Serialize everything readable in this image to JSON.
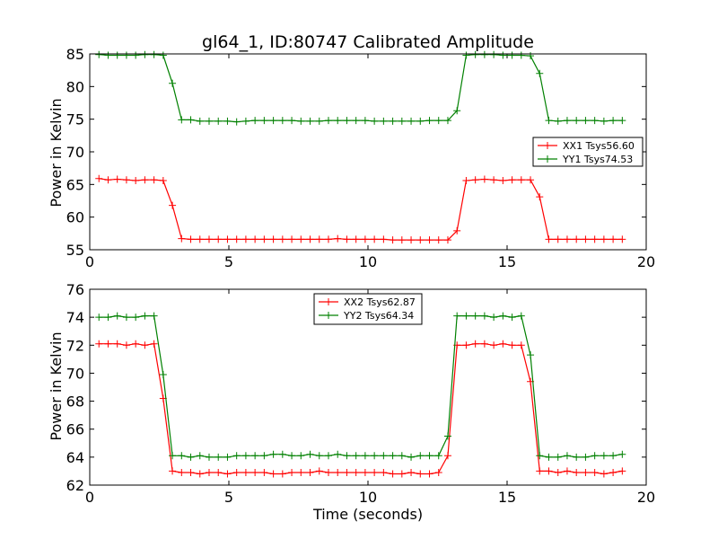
{
  "chart_data": [
    {
      "type": "line",
      "title": "gl64_1, ID:80747 Calibrated Amplitude",
      "xlabel": "",
      "ylabel": "Power in Kelvin",
      "xlim": [
        0,
        20
      ],
      "ylim": [
        55,
        85
      ],
      "xticks": [
        "0",
        "5",
        "10",
        "15",
        "20"
      ],
      "yticks": [
        "55",
        "60",
        "65",
        "70",
        "75",
        "80",
        "85"
      ],
      "legend_position": "right",
      "x": [
        0.33,
        0.66,
        0.99,
        1.32,
        1.65,
        1.98,
        2.31,
        2.64,
        2.97,
        3.3,
        3.63,
        3.96,
        4.29,
        4.62,
        4.95,
        5.28,
        5.61,
        5.94,
        6.27,
        6.6,
        6.93,
        7.26,
        7.59,
        7.92,
        8.25,
        8.58,
        8.91,
        9.24,
        9.57,
        9.9,
        10.23,
        10.56,
        10.89,
        11.22,
        11.55,
        11.88,
        12.21,
        12.54,
        12.87,
        13.2,
        13.53,
        13.86,
        14.19,
        14.52,
        14.85,
        15.18,
        15.51,
        15.84,
        16.17,
        16.5,
        16.83,
        17.16,
        17.49,
        17.82,
        18.15,
        18.48,
        18.81,
        19.14
      ],
      "series": [
        {
          "name": "XX1 Tsys56.60",
          "color": "#ff0000",
          "values": [
            65.9,
            65.7,
            65.8,
            65.7,
            65.6,
            65.7,
            65.7,
            65.6,
            61.8,
            56.7,
            56.6,
            56.6,
            56.6,
            56.6,
            56.6,
            56.6,
            56.6,
            56.6,
            56.6,
            56.6,
            56.6,
            56.6,
            56.6,
            56.6,
            56.6,
            56.6,
            56.7,
            56.6,
            56.6,
            56.6,
            56.6,
            56.6,
            56.5,
            56.5,
            56.5,
            56.5,
            56.5,
            56.5,
            56.5,
            57.9,
            65.6,
            65.7,
            65.8,
            65.7,
            65.6,
            65.7,
            65.7,
            65.7,
            63.1,
            56.6,
            56.6,
            56.6,
            56.6,
            56.6,
            56.6,
            56.6,
            56.6,
            56.6
          ]
        },
        {
          "name": "YY1 Tsys74.53",
          "color": "#008000",
          "values": [
            84.9,
            84.8,
            84.8,
            84.8,
            84.8,
            84.9,
            84.9,
            84.8,
            80.5,
            74.9,
            74.9,
            74.7,
            74.7,
            74.7,
            74.7,
            74.6,
            74.7,
            74.8,
            74.8,
            74.8,
            74.8,
            74.8,
            74.7,
            74.7,
            74.7,
            74.8,
            74.8,
            74.8,
            74.8,
            74.8,
            74.7,
            74.7,
            74.7,
            74.7,
            74.7,
            74.7,
            74.8,
            74.8,
            74.8,
            76.3,
            84.8,
            84.9,
            84.9,
            84.9,
            84.8,
            84.8,
            84.8,
            84.7,
            82.0,
            74.8,
            74.7,
            74.8,
            74.8,
            74.8,
            74.8,
            74.7,
            74.8,
            74.8
          ]
        }
      ]
    },
    {
      "type": "line",
      "title": "",
      "xlabel": "Time (seconds)",
      "ylabel": "Power in Kelvin",
      "xlim": [
        0,
        20
      ],
      "ylim": [
        62,
        76
      ],
      "xticks": [
        "0",
        "5",
        "10",
        "15",
        "20"
      ],
      "yticks": [
        "62",
        "64",
        "66",
        "68",
        "70",
        "72",
        "74",
        "76"
      ],
      "legend_position": "upper center",
      "x": [
        0.33,
        0.66,
        0.99,
        1.32,
        1.65,
        1.98,
        2.31,
        2.64,
        2.97,
        3.3,
        3.63,
        3.96,
        4.29,
        4.62,
        4.95,
        5.28,
        5.61,
        5.94,
        6.27,
        6.6,
        6.93,
        7.26,
        7.59,
        7.92,
        8.25,
        8.58,
        8.91,
        9.24,
        9.57,
        9.9,
        10.23,
        10.56,
        10.89,
        11.22,
        11.55,
        11.88,
        12.21,
        12.54,
        12.87,
        13.2,
        13.53,
        13.86,
        14.19,
        14.52,
        14.85,
        15.18,
        15.51,
        15.84,
        16.17,
        16.5,
        16.83,
        17.16,
        17.49,
        17.82,
        18.15,
        18.48,
        18.81,
        19.14
      ],
      "series": [
        {
          "name": "XX2 Tsys62.87",
          "color": "#ff0000",
          "values": [
            72.1,
            72.1,
            72.1,
            72.0,
            72.1,
            72.0,
            72.1,
            68.2,
            63.0,
            62.9,
            62.9,
            62.8,
            62.9,
            62.9,
            62.8,
            62.9,
            62.9,
            62.9,
            62.9,
            62.8,
            62.8,
            62.9,
            62.9,
            62.9,
            63.0,
            62.9,
            62.9,
            62.9,
            62.9,
            62.9,
            62.9,
            62.9,
            62.8,
            62.8,
            62.9,
            62.8,
            62.8,
            62.9,
            64.1,
            72.0,
            72.0,
            72.1,
            72.1,
            72.0,
            72.1,
            72.0,
            72.0,
            69.4,
            63.0,
            63.0,
            62.9,
            63.0,
            62.9,
            62.9,
            62.9,
            62.8,
            62.9,
            63.0
          ]
        },
        {
          "name": "YY2 Tsys64.34",
          "color": "#008000",
          "values": [
            74.0,
            74.0,
            74.1,
            74.0,
            74.0,
            74.1,
            74.1,
            69.9,
            64.1,
            64.1,
            64.0,
            64.1,
            64.0,
            64.0,
            64.0,
            64.1,
            64.1,
            64.1,
            64.1,
            64.2,
            64.2,
            64.1,
            64.1,
            64.2,
            64.1,
            64.1,
            64.2,
            64.1,
            64.1,
            64.1,
            64.1,
            64.1,
            64.1,
            64.1,
            64.0,
            64.1,
            64.1,
            64.1,
            65.5,
            74.1,
            74.1,
            74.1,
            74.1,
            74.0,
            74.1,
            74.0,
            74.1,
            71.3,
            64.1,
            64.0,
            64.0,
            64.1,
            64.0,
            64.0,
            64.1,
            64.1,
            64.1,
            64.2
          ]
        }
      ]
    }
  ]
}
